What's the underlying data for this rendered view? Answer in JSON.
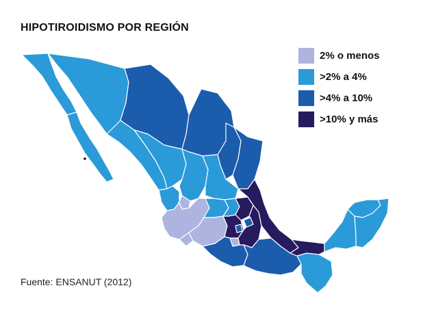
{
  "title": "HIPOTIROIDISMO POR REGIÓN",
  "source": "Fuente: ENSANUT (2012)",
  "colors": {
    "level1": "#aeb4df",
    "level2": "#2a9ad8",
    "level3": "#1b5cad",
    "level4": "#281a5e"
  },
  "legend": {
    "items": [
      {
        "label": "2% o menos",
        "level": "level1"
      },
      {
        "label": ">2% a 4%",
        "level": "level2"
      },
      {
        "label": ">4% a 10%",
        "level": "level3"
      },
      {
        "label": ">10% y más",
        "level": "level4"
      }
    ]
  },
  "regions": [
    {
      "name": "Baja California",
      "level": "level2"
    },
    {
      "name": "Baja California Sur",
      "level": "level2"
    },
    {
      "name": "Sonora",
      "level": "level2"
    },
    {
      "name": "Chihuahua",
      "level": "level3"
    },
    {
      "name": "Coahuila",
      "level": "level3"
    },
    {
      "name": "Nuevo León",
      "level": "level3"
    },
    {
      "name": "Tamaulipas",
      "level": "level3"
    },
    {
      "name": "Sinaloa",
      "level": "level2"
    },
    {
      "name": "Durango",
      "level": "level2"
    },
    {
      "name": "Zacatecas",
      "level": "level2"
    },
    {
      "name": "San Luis Potosí",
      "level": "level2"
    },
    {
      "name": "Nayarit",
      "level": "level2"
    },
    {
      "name": "Aguascalientes",
      "level": "level1"
    },
    {
      "name": "Jalisco",
      "level": "level1"
    },
    {
      "name": "Guanajuato",
      "level": "level2"
    },
    {
      "name": "Querétaro",
      "level": "level2"
    },
    {
      "name": "Hidalgo",
      "level": "level4"
    },
    {
      "name": "Colima",
      "level": "level1"
    },
    {
      "name": "Michoacán",
      "level": "level1"
    },
    {
      "name": "Estado de México",
      "level": "level4"
    },
    {
      "name": "Ciudad de México",
      "level": "level3"
    },
    {
      "name": "Morelos",
      "level": "level1"
    },
    {
      "name": "Tlaxcala",
      "level": "level3"
    },
    {
      "name": "Puebla",
      "level": "level4"
    },
    {
      "name": "Veracruz",
      "level": "level4"
    },
    {
      "name": "Guerrero",
      "level": "level3"
    },
    {
      "name": "Oaxaca",
      "level": "level3"
    },
    {
      "name": "Chiapas",
      "level": "level2"
    },
    {
      "name": "Tabasco",
      "level": "level4"
    },
    {
      "name": "Campeche",
      "level": "level2"
    },
    {
      "name": "Yucatán",
      "level": "level2"
    },
    {
      "name": "Quintana Roo",
      "level": "level2"
    }
  ]
}
